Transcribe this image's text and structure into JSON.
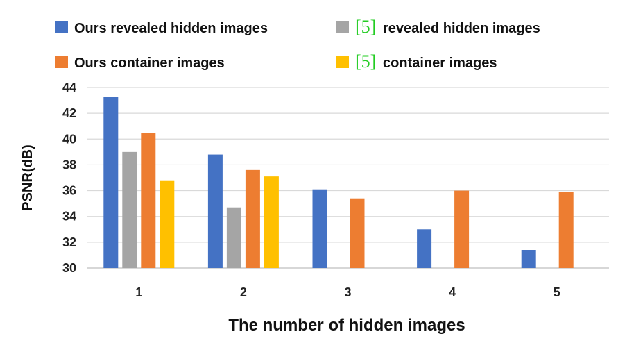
{
  "chart_data": {
    "type": "bar",
    "xlabel": "The number of hidden images",
    "ylabel": "PSNR(dB)",
    "ylim": [
      30,
      44
    ],
    "yticks": [
      30,
      32,
      34,
      36,
      38,
      40,
      42,
      44
    ],
    "grid": true,
    "legend_placement": "top",
    "categories": [
      "1",
      "2",
      "3",
      "4",
      "5"
    ],
    "series": [
      {
        "name": "Ours revealed hidden images",
        "cite": "",
        "color": "#4472C4",
        "values": [
          43.3,
          38.8,
          36.1,
          33.0,
          31.4
        ]
      },
      {
        "name": "revealed hidden images",
        "cite": "[5]",
        "color": "#A5A5A5",
        "values": [
          39.0,
          34.7,
          null,
          null,
          null
        ]
      },
      {
        "name": "Ours container images",
        "cite": "",
        "color": "#ED7D31",
        "values": [
          40.5,
          37.6,
          35.4,
          36.0,
          35.9
        ]
      },
      {
        "name": "container images",
        "cite": "[5]",
        "color": "#FFC000",
        "values": [
          36.8,
          37.1,
          null,
          null,
          null
        ]
      }
    ]
  }
}
